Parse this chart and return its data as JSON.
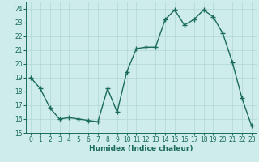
{
  "x": [
    0,
    1,
    2,
    3,
    4,
    5,
    6,
    7,
    8,
    9,
    10,
    11,
    12,
    13,
    14,
    15,
    16,
    17,
    18,
    19,
    20,
    21,
    22,
    23
  ],
  "y": [
    19.0,
    18.2,
    16.8,
    16.0,
    16.1,
    16.0,
    15.9,
    15.8,
    18.2,
    16.5,
    19.4,
    21.1,
    21.2,
    21.2,
    23.2,
    23.9,
    22.8,
    23.2,
    23.9,
    23.4,
    22.2,
    20.1,
    17.5,
    15.5
  ],
  "line_color": "#1a6b5a",
  "marker": "+",
  "marker_size": 4,
  "marker_color": "#1a6b5a",
  "bg_color": "#ceecea",
  "grid_color": "#b0d8d4",
  "xlabel": "Humidex (Indice chaleur)",
  "ylim": [
    15,
    24.5
  ],
  "yticks": [
    15,
    16,
    17,
    18,
    19,
    20,
    21,
    22,
    23,
    24
  ],
  "xlim": [
    -0.5,
    23.5
  ],
  "xticks": [
    0,
    1,
    2,
    3,
    4,
    5,
    6,
    7,
    8,
    9,
    10,
    11,
    12,
    13,
    14,
    15,
    16,
    17,
    18,
    19,
    20,
    21,
    22,
    23
  ],
  "tick_label_fontsize": 5.5,
  "xlabel_fontsize": 6.5,
  "linewidth": 1.0
}
